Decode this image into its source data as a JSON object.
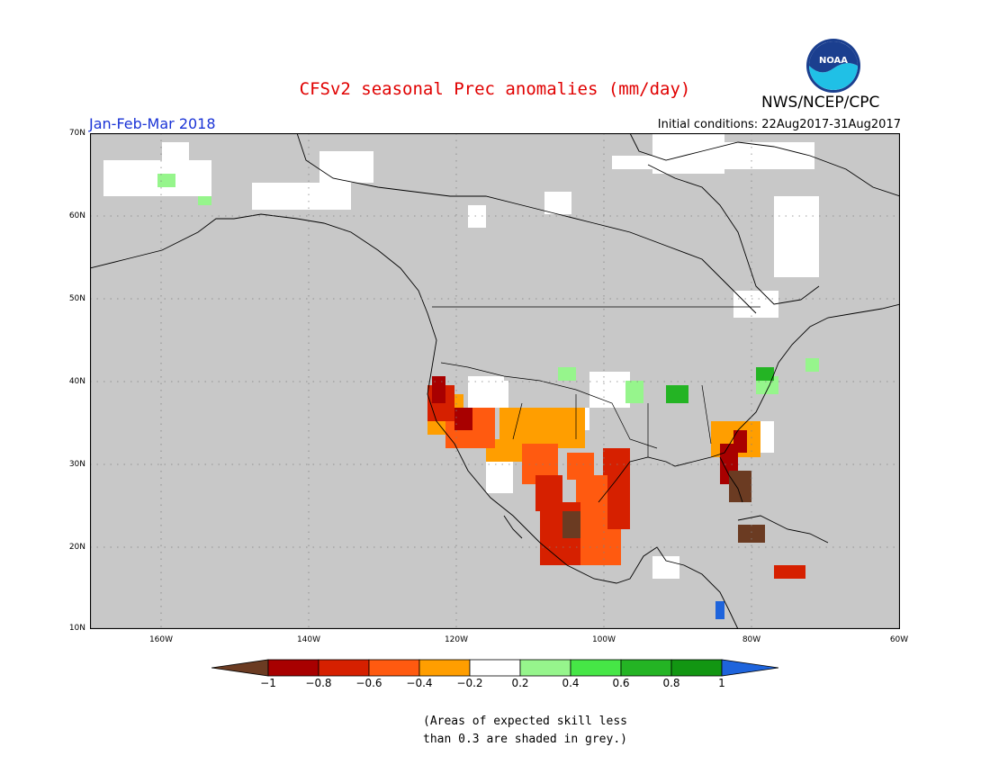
{
  "header": {
    "title": "CFSv2 seasonal Prec anomalies (mm/day)",
    "org": "NWS/NCEP/CPC",
    "logo_text": "NOAA",
    "season": "Jan-Feb-Mar 2018",
    "initial_conditions": "Initial conditions: 22Aug2017-31Aug2017"
  },
  "map": {
    "lat_labels": [
      "70N",
      "60N",
      "50N",
      "40N",
      "30N",
      "20N",
      "10N"
    ],
    "lon_labels": [
      "160W",
      "140W",
      "120W",
      "100W",
      "80W",
      "60W"
    ],
    "background_color": "#c8c8c8"
  },
  "colorbar": {
    "ticks": [
      "−1",
      "−0.8",
      "−0.6",
      "−0.4",
      "−0.2",
      "0.2",
      "0.4",
      "0.6",
      "0.8",
      "1"
    ],
    "colors": [
      "#6b3b22",
      "#a80000",
      "#d62000",
      "#ff5a10",
      "#ff9e00",
      "#ffffff",
      "#96f58c",
      "#46e646",
      "#24b424",
      "#129612",
      "#1e64dc"
    ]
  },
  "note": {
    "line1": "(Areas of expected skill less",
    "line2": "than 0.3 are shaded in grey.)"
  }
}
